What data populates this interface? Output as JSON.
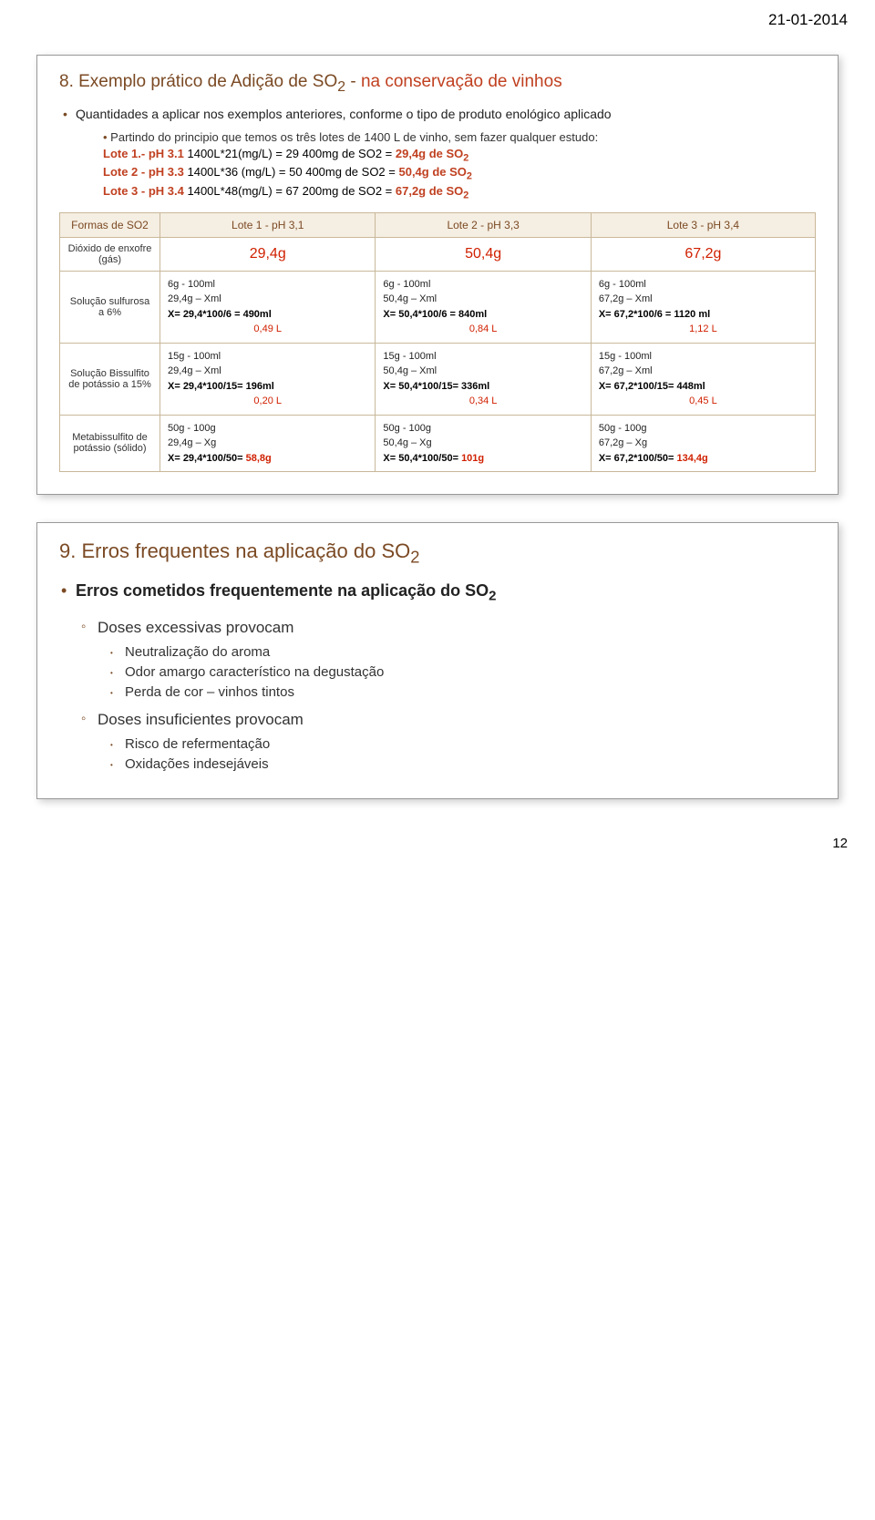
{
  "header_date": "21-01-2014",
  "page_number": "12",
  "slide1": {
    "title_plain": "8. Exemplo prático de Adição de SO",
    "title_sub": "2",
    "title_dash": " -  ",
    "title_accent": "na conservação de vinhos",
    "bullet1": "Quantidades a aplicar nos exemplos anteriores, conforme o tipo de produto enológico aplicado",
    "sub1": "Partindo do principio que temos os três lotes de 1400 L de vinho, sem fazer qualquer estudo:",
    "lote1_label": "Lote 1.- pH 3.1",
    "lote1_txt": " 1400L*21(mg/L) = 29 400mg de SO2 = ",
    "lote1_val": "29,4g de SO",
    "lote1_sub": "2",
    "lote2_label": "Lote 2 - pH 3.3",
    "lote2_txt": " 1400L*36 (mg/L) = 50 400mg de SO2 = ",
    "lote2_val": "50,4g de SO",
    "lote2_sub": "2",
    "lote3_label": "Lote 3 - pH 3.4",
    "lote3_txt": " 1400L*48(mg/L) = 67 200mg de SO2 = ",
    "lote3_val": "67,2g de SO",
    "lote3_sub": "2",
    "table": {
      "header_col0": "Formas de SO2",
      "header_col1": "Lote 1 - pH 3,1",
      "header_col2": "Lote 2 - pH 3,3",
      "header_col3": "Lote 3 - pH 3,4",
      "row1_label": "Dióxido de enxofre (gás)",
      "row1_c1": "29,4g",
      "row1_c2": "50,4g",
      "row1_c3": "67,2g",
      "row2_label": "Solução sulfurosa  a 6%",
      "row2_c1_l1": "6g  - 100ml",
      "row2_c1_l2": "29,4g – Xml",
      "row2_c1_l3a": "X= 29,4*100/6 = 490ml",
      "row2_c1_l3b": "0,49 L",
      "row2_c2_l1": "6g  - 100ml",
      "row2_c2_l2": "50,4g – Xml",
      "row2_c2_l3a": "X= 50,4*100/6 = 840ml",
      "row2_c2_l3b": "0,84 L",
      "row2_c3_l1": "6g  - 100ml",
      "row2_c3_l2": "67,2g – Xml",
      "row2_c3_l3a": "X= 67,2*100/6 = 1120 ml",
      "row2_c3_l3b": "1,12 L",
      "row3_label": "Solução Bissulfito de potássio  a 15%",
      "row3_c1_l1": "15g  - 100ml",
      "row3_c1_l2": "29,4g – Xml",
      "row3_c1_l3a": "X= 29,4*100/15= 196ml",
      "row3_c1_l3b": "0,20 L",
      "row3_c2_l1": "15g  - 100ml",
      "row3_c2_l2": "50,4g – Xml",
      "row3_c2_l3a": "X= 50,4*100/15= 336ml",
      "row3_c2_l3b": "0,34 L",
      "row3_c3_l1": "15g  - 100ml",
      "row3_c3_l2": "67,2g – Xml",
      "row3_c3_l3a": "X= 67,2*100/15= 448ml",
      "row3_c3_l3b": "0,45 L",
      "row4_label": "Metabissulfito de potássio (sólido)",
      "row4_c1_l1": "50g  - 100g",
      "row4_c1_l2": "29,4g – Xg",
      "row4_c1_l3a": "X= 29,4*100/50= ",
      "row4_c1_l3b": "58,8g",
      "row4_c2_l1": "50g  - 100g",
      "row4_c2_l2": "50,4g – Xg",
      "row4_c2_l3a": "X= 50,4*100/50= ",
      "row4_c2_l3b": "101g",
      "row4_c3_l1": "50g  - 100g",
      "row4_c3_l2": "67,2g – Xg",
      "row4_c3_l3a": "X= 67,2*100/50= ",
      "row4_c3_l3b": "134,4g"
    }
  },
  "slide2": {
    "title": "9. Erros frequentes na aplicação do SO",
    "title_sub": "2",
    "bullet_main_a": "Erros cometidos frequentemente na aplicação do SO",
    "bullet_main_sub": "2",
    "sub1": "Doses excessivas provocam",
    "sub1_items": [
      "Neutralização do aroma",
      "Odor amargo característico na degustação",
      "Perda de cor – vinhos tintos"
    ],
    "sub2": "Doses insuficientes provocam",
    "sub2_items": [
      "Risco de refermentação",
      "Oxidações indesejáveis"
    ]
  }
}
